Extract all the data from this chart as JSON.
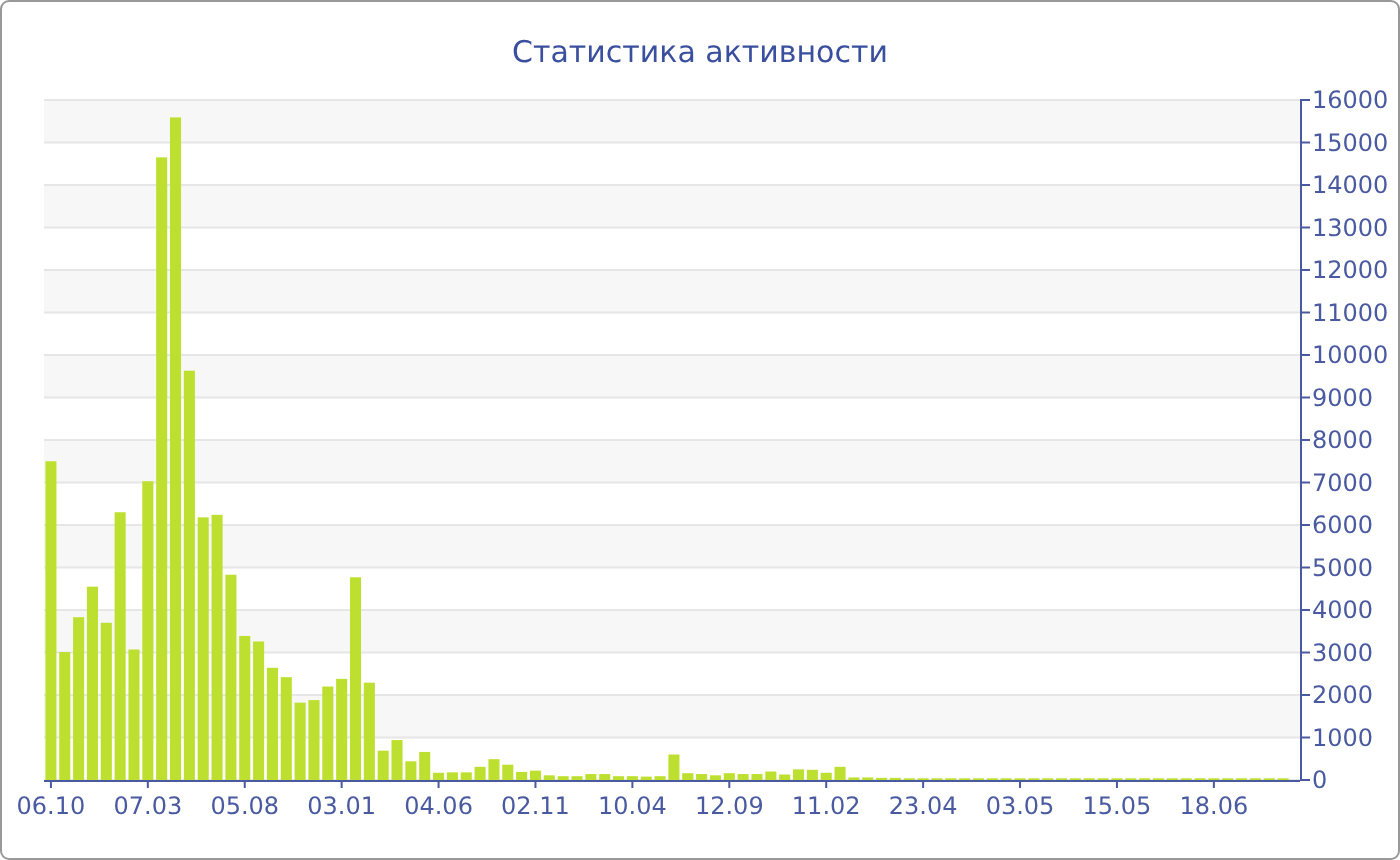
{
  "chart_data": {
    "type": "bar",
    "title": "Статистика активности",
    "categories": [
      "06.10",
      null,
      null,
      null,
      null,
      null,
      null,
      "07.03",
      null,
      null,
      null,
      null,
      null,
      null,
      "05.08",
      null,
      null,
      null,
      null,
      null,
      null,
      "03.01",
      null,
      null,
      null,
      null,
      null,
      null,
      "04.06",
      null,
      null,
      null,
      null,
      null,
      null,
      "02.11",
      null,
      null,
      null,
      null,
      null,
      null,
      "10.04",
      null,
      null,
      null,
      null,
      null,
      null,
      "12.09",
      null,
      null,
      null,
      null,
      null,
      null,
      "11.02",
      null,
      null,
      null,
      null,
      null,
      null,
      "23.04",
      null,
      null,
      null,
      null,
      null,
      null,
      "03.05",
      null,
      null,
      null,
      null,
      null,
      null,
      "15.05",
      null,
      null,
      null,
      null,
      null,
      null,
      "18.06",
      null,
      null,
      null,
      null,
      null
    ],
    "values": [
      7500,
      3010,
      3830,
      4550,
      3700,
      6300,
      3070,
      7030,
      14650,
      15590,
      9630,
      6180,
      6240,
      4830,
      3390,
      3260,
      2640,
      2420,
      1820,
      1880,
      2200,
      2380,
      4770,
      2290,
      690,
      940,
      440,
      660,
      170,
      180,
      180,
      310,
      490,
      360,
      190,
      220,
      110,
      90,
      90,
      140,
      140,
      90,
      90,
      80,
      90,
      600,
      160,
      140,
      110,
      160,
      140,
      140,
      200,
      130,
      250,
      240,
      170,
      310,
      60,
      60,
      50,
      50,
      40,
      40,
      40,
      40,
      40,
      40,
      40,
      40,
      40,
      40,
      40,
      40,
      40,
      40,
      40,
      40,
      40,
      40,
      40,
      40,
      40,
      40,
      40,
      40,
      40,
      40,
      40,
      40
    ],
    "color": "#bde030",
    "ylim": [
      0,
      16000
    ],
    "yticks": [
      0,
      1000,
      2000,
      3000,
      4000,
      5000,
      6000,
      7000,
      8000,
      9000,
      10000,
      11000,
      12000,
      13000,
      14000,
      15000,
      16000
    ],
    "grid": "y"
  }
}
